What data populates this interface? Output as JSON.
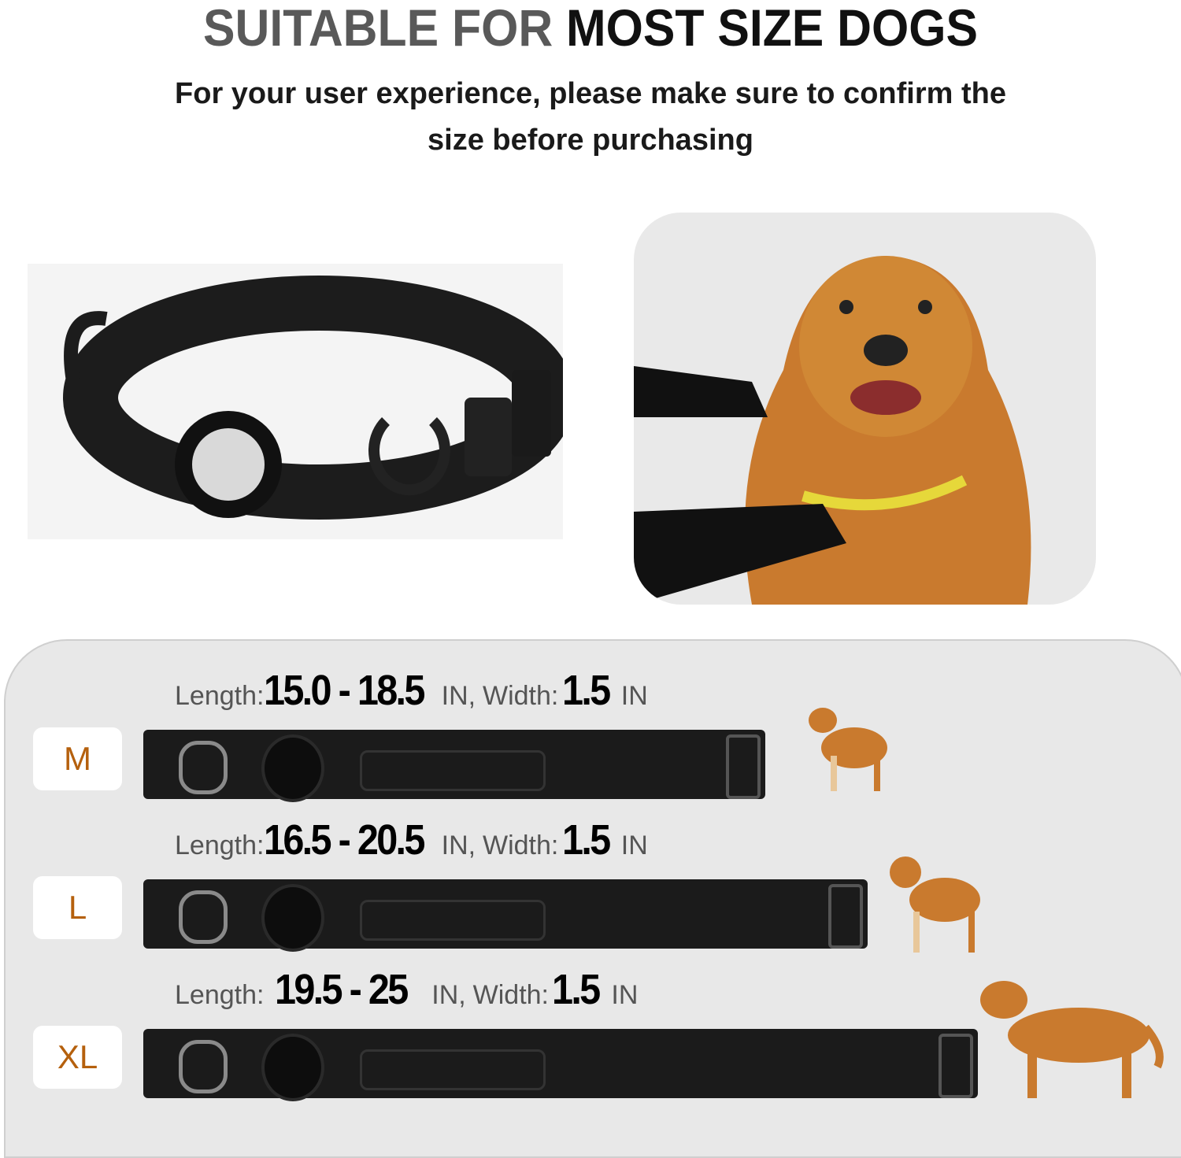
{
  "header": {
    "title_part1": "SUITABLE FOR",
    "title_part2": "MOST SIZE DOGS",
    "subtitle_line1": "For your user experience, please make sure to confirm the",
    "subtitle_line2": "size before purchasing"
  },
  "sizes": [
    {
      "size": "M",
      "length_label": "Length:",
      "length": "15.0 - 18.5",
      "unit": "IN,",
      "width_label": "Width:",
      "width": "1.5",
      "width_unit": "IN"
    },
    {
      "size": "L",
      "length_label": "Length:",
      "length": "16.5 - 20.5",
      "unit": "IN,",
      "width_label": "Width:",
      "width": "1.5",
      "width_unit": "IN"
    },
    {
      "size": "XL",
      "length_label": "Length:",
      "length": "19.5 - 25",
      "unit": "IN,",
      "width_label": "Width:",
      "width": "1.5",
      "width_unit": "IN"
    }
  ],
  "colors": {
    "badge_text": "#b5600d",
    "panel": "#e8e8e8",
    "dog": "#c97a2e"
  }
}
